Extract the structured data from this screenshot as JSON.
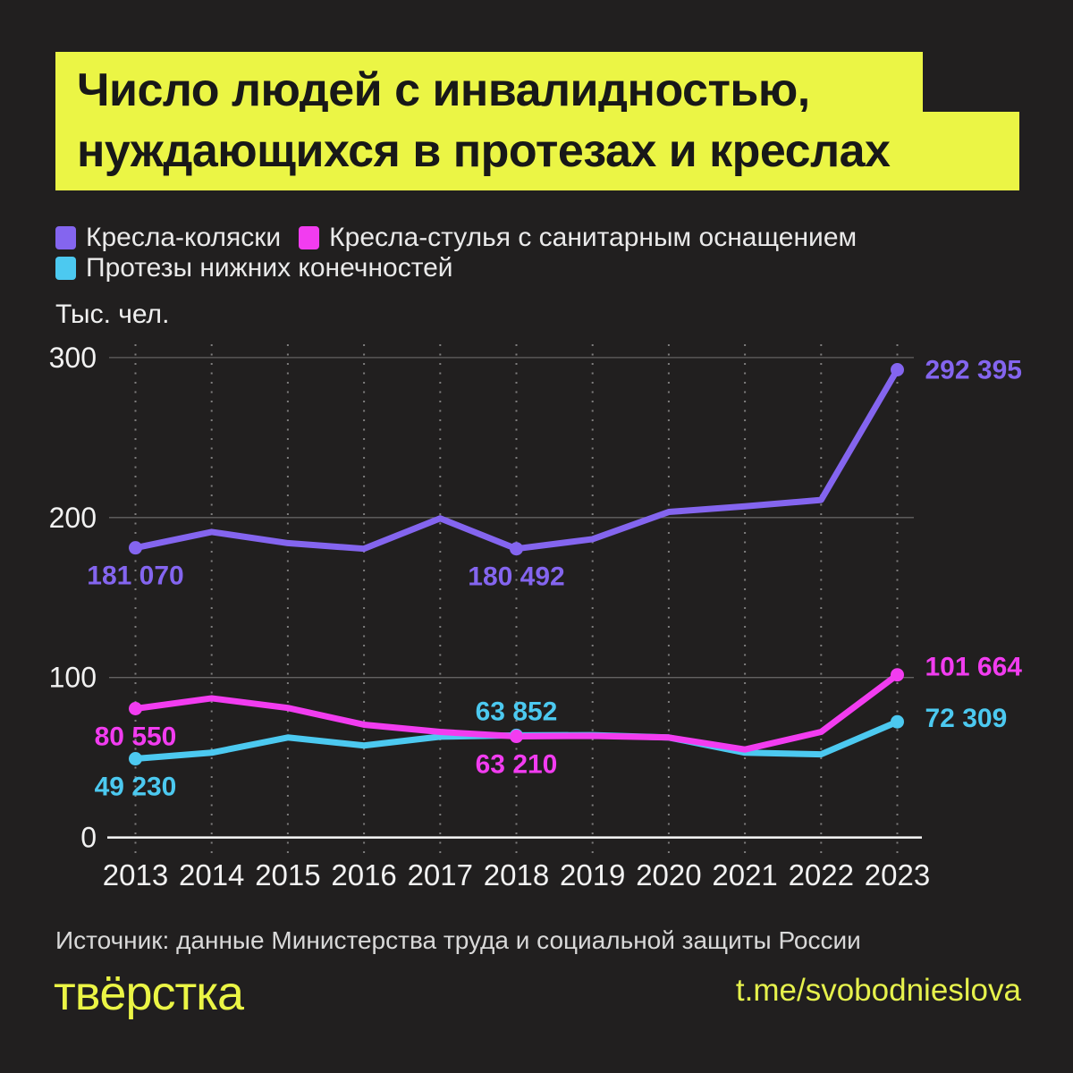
{
  "title": {
    "line1": "Число людей с инвалидностью,",
    "line2": "нуждающихся в протезах и креслах"
  },
  "legend": {
    "items": [
      {
        "label": "Кресла-коляски",
        "color": "#8465ef"
      },
      {
        "label": "Кресла-стулья с санитарным оснащением",
        "color": "#f23cf0"
      },
      {
        "label": "Протезы нижних конечностей",
        "color": "#4cc9f0"
      }
    ]
  },
  "y_axis_unit": "Тыс. чел.",
  "chart_data": {
    "type": "line",
    "x": [
      2013,
      2014,
      2015,
      2016,
      2017,
      2018,
      2019,
      2020,
      2021,
      2022,
      2023
    ],
    "ylabel": "Тыс. чел.",
    "ylim": [
      0,
      300
    ],
    "yticks": [
      0,
      100,
      200,
      300
    ],
    "grid": {
      "horizontal": "solid-gray",
      "vertical": "dotted-gray"
    },
    "legend_position": "top",
    "series": [
      {
        "name": "Кресла-коляски",
        "color": "#8465ef",
        "values": [
          181.07,
          191,
          184,
          180.5,
          199.5,
          180.492,
          186.5,
          203.5,
          207,
          211,
          292.395
        ],
        "annotations": [
          {
            "year": 2013,
            "text": "181 070",
            "placement": "below"
          },
          {
            "year": 2018,
            "text": "180 492",
            "placement": "below"
          },
          {
            "year": 2023,
            "text": "292 395",
            "placement": "right"
          }
        ]
      },
      {
        "name": "Протезы нижних конечностей",
        "color": "#4cc9f0",
        "values": [
          49.23,
          53,
          62.5,
          57.5,
          63,
          63.852,
          64,
          62.5,
          53,
          52,
          72.309
        ],
        "annotations": [
          {
            "year": 2013,
            "text": "49 230",
            "placement": "below"
          },
          {
            "year": 2018,
            "text": "63 852",
            "placement": "above"
          },
          {
            "year": 2023,
            "text": "72 309",
            "placement": "right",
            "dy": -4
          }
        ]
      },
      {
        "name": "Кресла-стулья с санитарным оснащением",
        "color": "#f23cf0",
        "values": [
          80.55,
          87,
          81,
          70.5,
          66,
          63.21,
          63.5,
          62.5,
          55,
          66,
          101.664
        ],
        "annotations": [
          {
            "year": 2013,
            "text": "80 550",
            "placement": "below"
          },
          {
            "year": 2018,
            "text": "63 210",
            "placement": "below"
          },
          {
            "year": 2023,
            "text": "101 664",
            "placement": "right",
            "dy": -9
          }
        ]
      }
    ]
  },
  "source": "Источник: данные Министерства труда и социальной защиты России",
  "footer": {
    "logo_text": "твёрстка",
    "telegram": "t.me/svobodnieslova"
  },
  "colors": {
    "background": "#211f1f",
    "accent_yellow": "#ebf545",
    "title_text": "#181818",
    "axis_text": "#f0f0f0",
    "source_text": "#d9d9d9"
  }
}
